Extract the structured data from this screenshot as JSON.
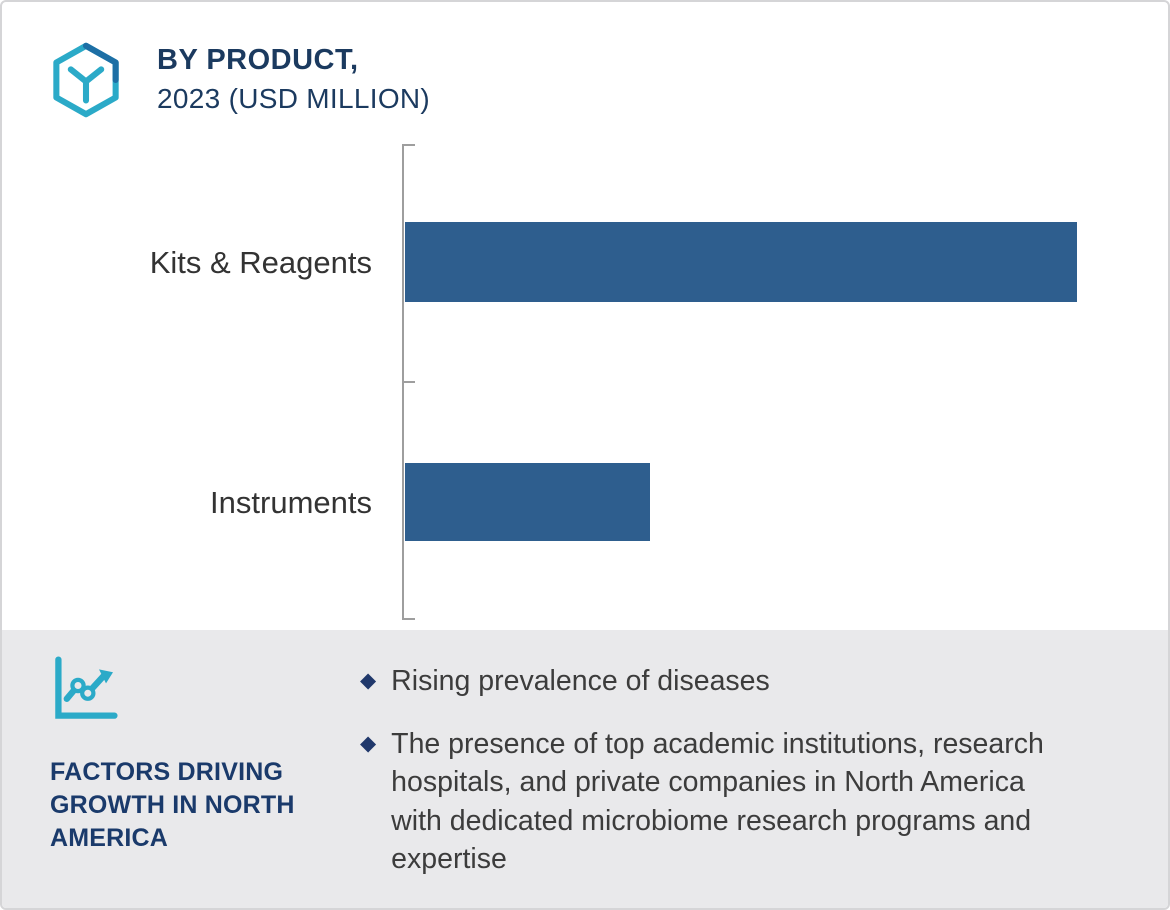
{
  "header": {
    "title_line1": "BY PRODUCT,",
    "title_line2": "2023 (USD MILLION)"
  },
  "chart_data": {
    "type": "bar",
    "orientation": "horizontal",
    "title": "BY PRODUCT, 2023 (USD MILLION)",
    "categories": [
      "Kits & Reagents",
      "Instruments"
    ],
    "values": [
      100,
      36.5
    ],
    "value_note": "no numeric axis labels shown; values are relative bar lengths as % of longest bar",
    "xlabel": "",
    "ylabel": "",
    "axis": {
      "gridlines": false,
      "numeric_labels": false,
      "ticks": 3
    },
    "legend": "none",
    "bar_color": "#2E5E8E"
  },
  "factors_panel": {
    "heading": "FACTORS DRIVING GROWTH IN NORTH AMERICA",
    "bullets": [
      "Rising prevalence of diseases",
      "The presence of top academic institutions, research hospitals, and private companies in North America with dedicated microbiome research programs and expertise"
    ]
  },
  "colors": {
    "bar": "#2E5E8E",
    "title_navy": "#1B3A5F",
    "heading_navy": "#1A3A6B",
    "bullet_diamond": "#20386B",
    "icon_teal": "#2BAAC8",
    "icon_accent_blue": "#1D6FA5",
    "panel_background": "#E9E9EB",
    "body_text": "#3C3C3C",
    "axis_gray": "#9E9E9E",
    "border_gray": "#D5D5D7"
  }
}
